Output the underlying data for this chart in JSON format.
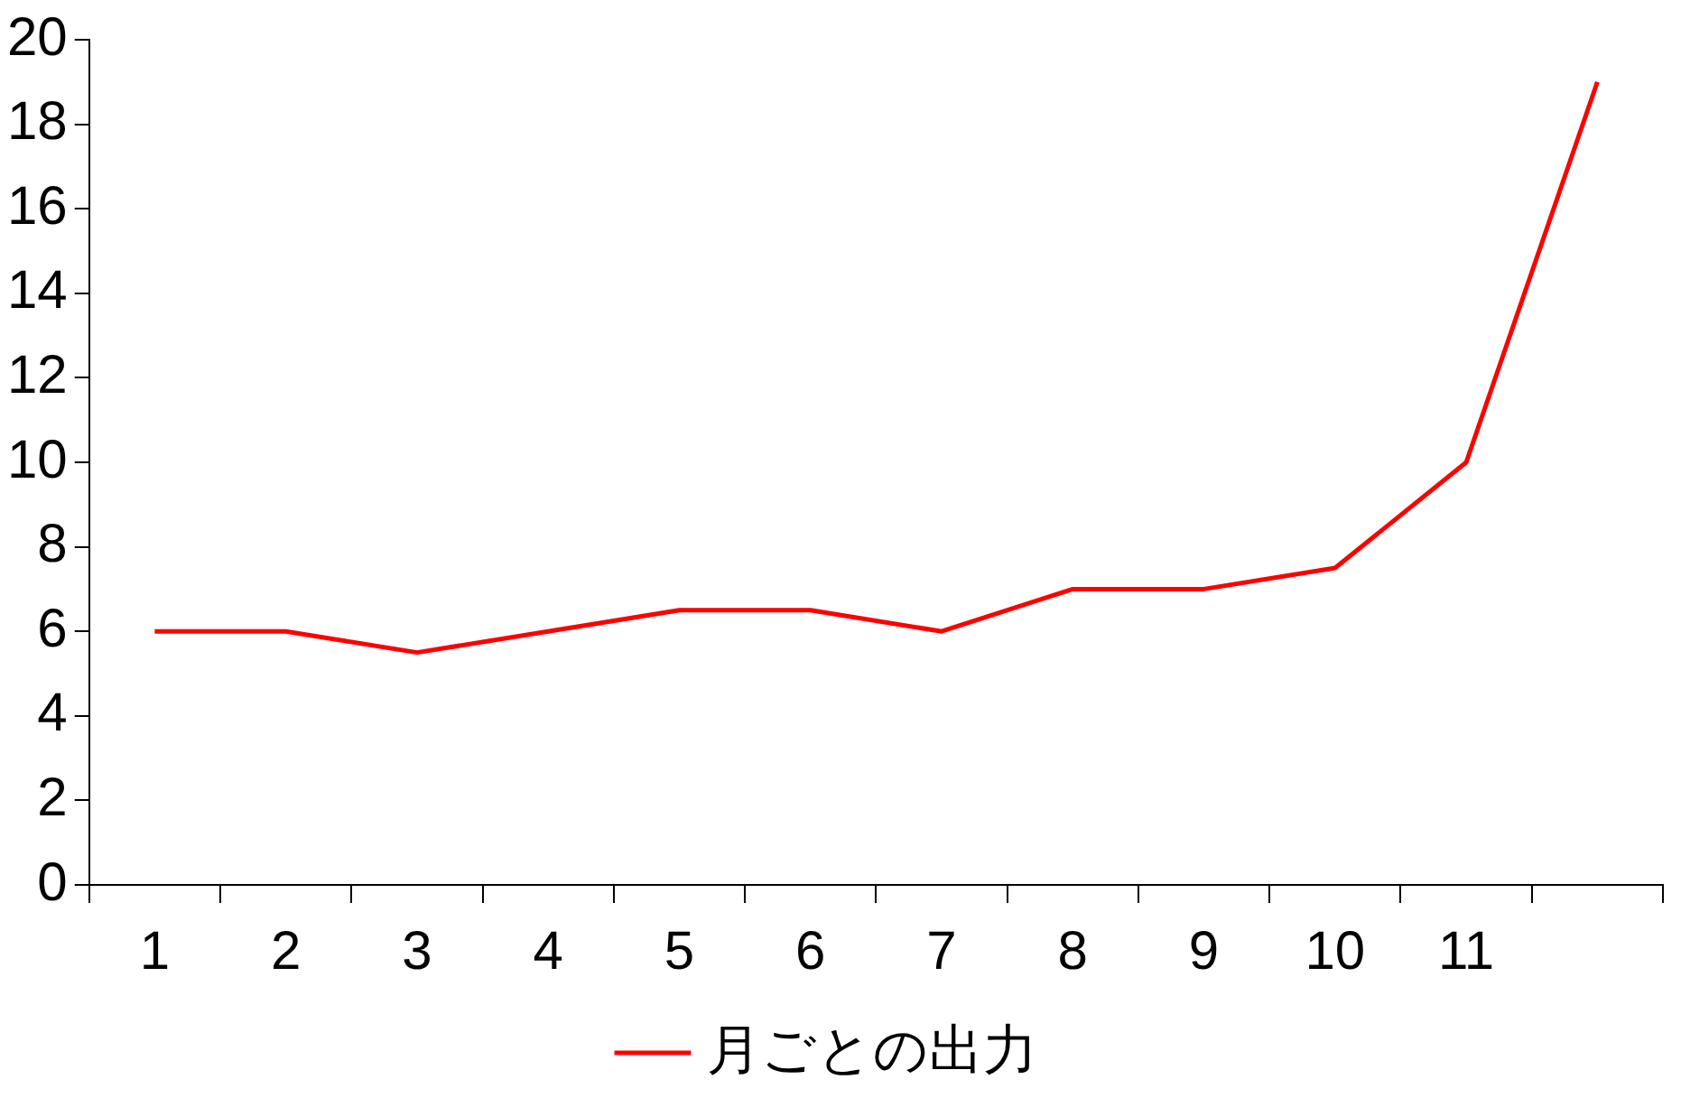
{
  "chart_data": {
    "type": "line",
    "categories": [
      "1",
      "2",
      "3",
      "4",
      "5",
      "6",
      "7",
      "8",
      "9",
      "10",
      "11",
      null
    ],
    "series": [
      {
        "name": "月ごとの出力",
        "color": "#ff0000",
        "values": [
          6,
          6,
          5.5,
          6,
          6.5,
          6.5,
          6,
          7,
          7,
          7.5,
          10,
          19
        ]
      }
    ],
    "ylim": [
      0,
      20
    ],
    "yticks": [
      0,
      2,
      4,
      6,
      8,
      10,
      12,
      14,
      16,
      18,
      20
    ],
    "grid": false,
    "legend": "bottom",
    "marker": "none",
    "line_style": "solid"
  }
}
